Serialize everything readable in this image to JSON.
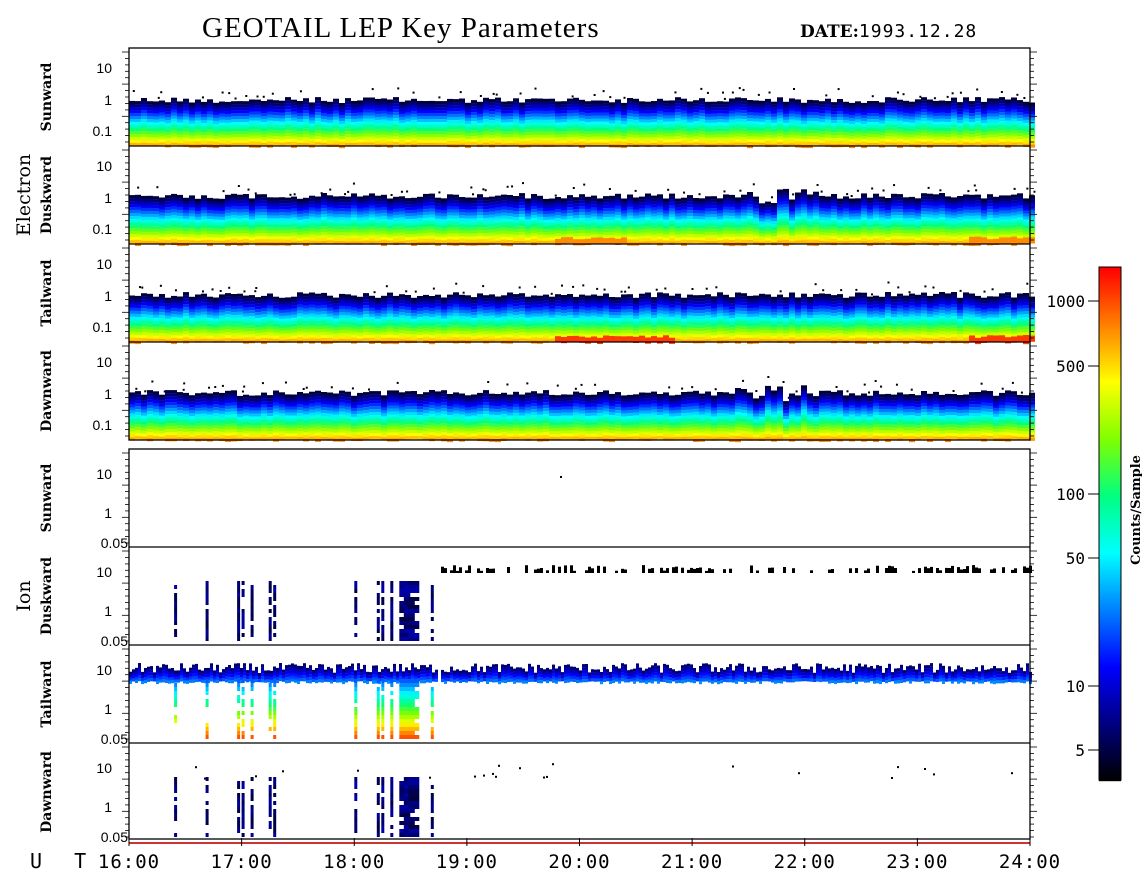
{
  "header": {
    "title": "GEOTAIL LEP Key Parameters",
    "date_label": "DATE:",
    "date_value": "1993.12.28"
  },
  "ut_label": "U T",
  "chart_data": {
    "type": "heatmap",
    "title": "GEOTAIL LEP Key Parameters",
    "x_axis": {
      "label": "U T",
      "range": [
        "16:00",
        "24:00"
      ],
      "ticks": [
        "16:00",
        "17:00",
        "18:00",
        "19:00",
        "20:00",
        "21:00",
        "22:00",
        "23:00",
        "24:00"
      ]
    },
    "groups": [
      {
        "label": "Electron",
        "panels": [
          "Sunward",
          "Duskward",
          "Tailward",
          "Dawnward"
        ],
        "y_ticks": [
          "10",
          "1",
          "0.1"
        ],
        "y_scale": "log"
      },
      {
        "label": "Ion",
        "panels": [
          "Sunward",
          "Duskward",
          "Tailward",
          "Dawnward"
        ],
        "y_ticks": [
          "10",
          "1",
          "0.05"
        ],
        "y_scale": "log"
      }
    ],
    "colorbar": {
      "label": "Counts/Sample",
      "scale": "log",
      "ticks": [
        "1000",
        "500",
        "100",
        "50",
        "10",
        "5"
      ],
      "colors": [
        "#000000",
        "#000080",
        "#0000ff",
        "#0080ff",
        "#00ffff",
        "#00ff80",
        "#80ff00",
        "#ffff00",
        "#ff8000",
        "#ff0000"
      ]
    },
    "grid": false
  }
}
